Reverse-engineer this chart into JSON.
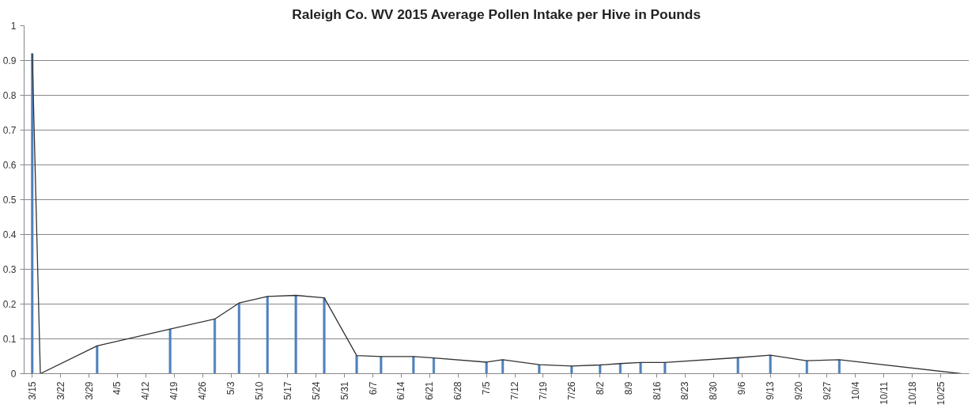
{
  "chart_data": {
    "type": "bar",
    "title": "Raleigh Co. WV 2015 Average Pollen Intake per Hive in Pounds",
    "xlim": [
      "2015-03-13",
      "2015-11-01"
    ],
    "xticks": [
      {
        "value": "2015-03-15",
        "label": "3/15"
      },
      {
        "value": "2015-03-22",
        "label": "3/22"
      },
      {
        "value": "2015-03-29",
        "label": "3/29"
      },
      {
        "value": "2015-04-05",
        "label": "4/5"
      },
      {
        "value": "2015-04-12",
        "label": "4/12"
      },
      {
        "value": "2015-04-19",
        "label": "4/19"
      },
      {
        "value": "2015-04-26",
        "label": "4/26"
      },
      {
        "value": "2015-05-03",
        "label": "5/3"
      },
      {
        "value": "2015-05-10",
        "label": "5/10"
      },
      {
        "value": "2015-05-17",
        "label": "5/17"
      },
      {
        "value": "2015-05-24",
        "label": "5/24"
      },
      {
        "value": "2015-05-31",
        "label": "5/31"
      },
      {
        "value": "2015-06-07",
        "label": "6/7"
      },
      {
        "value": "2015-06-14",
        "label": "6/14"
      },
      {
        "value": "2015-06-21",
        "label": "6/21"
      },
      {
        "value": "2015-06-28",
        "label": "6/28"
      },
      {
        "value": "2015-07-05",
        "label": "7/5"
      },
      {
        "value": "2015-07-12",
        "label": "7/12"
      },
      {
        "value": "2015-07-19",
        "label": "7/19"
      },
      {
        "value": "2015-07-26",
        "label": "7/26"
      },
      {
        "value": "2015-08-02",
        "label": "8/2"
      },
      {
        "value": "2015-08-09",
        "label": "8/9"
      },
      {
        "value": "2015-08-16",
        "label": "8/16"
      },
      {
        "value": "2015-08-23",
        "label": "8/23"
      },
      {
        "value": "2015-08-30",
        "label": "8/30"
      },
      {
        "value": "2015-09-06",
        "label": "9/6"
      },
      {
        "value": "2015-09-13",
        "label": "9/13"
      },
      {
        "value": "2015-09-20",
        "label": "9/20"
      },
      {
        "value": "2015-09-27",
        "label": "9/27"
      },
      {
        "value": "2015-10-04",
        "label": "10/4"
      },
      {
        "value": "2015-10-11",
        "label": "10/11"
      },
      {
        "value": "2015-10-18",
        "label": "10/18"
      },
      {
        "value": "2015-10-25",
        "label": "10/25"
      }
    ],
    "ylim": [
      0,
      1
    ],
    "yticks": [
      0,
      0.1,
      0.2,
      0.3,
      0.4,
      0.5,
      0.6,
      0.7,
      0.8,
      0.9,
      1
    ],
    "grid": "y",
    "series": [
      {
        "color": "#4f81bd",
        "x": [
          "2015-03-15",
          "2015-03-31",
          "2015-04-18",
          "2015-04-29",
          "2015-05-05",
          "2015-05-12",
          "2015-05-19",
          "2015-05-26",
          "2015-06-03",
          "2015-06-09",
          "2015-06-17",
          "2015-06-22",
          "2015-07-05",
          "2015-07-09",
          "2015-07-18",
          "2015-07-26",
          "2015-08-02",
          "2015-08-07",
          "2015-08-12",
          "2015-08-18",
          "2015-09-05",
          "2015-09-13",
          "2015-09-22",
          "2015-09-30"
        ],
        "values": [
          0.92,
          0.08,
          0.128,
          0.157,
          0.203,
          0.222,
          0.225,
          0.218,
          0.052,
          0.049,
          0.049,
          0.045,
          0.033,
          0.04,
          0.026,
          0.022,
          0.025,
          0.029,
          0.032,
          0.032,
          0.046,
          0.053,
          0.037,
          0.04
        ]
      },
      {
        "type": "line",
        "color": "#333333",
        "x": [
          "2015-03-15",
          "2015-03-17",
          "2015-03-31",
          "2015-04-18",
          "2015-04-29",
          "2015-05-05",
          "2015-05-12",
          "2015-05-19",
          "2015-05-26",
          "2015-06-03",
          "2015-06-09",
          "2015-06-17",
          "2015-06-22",
          "2015-07-05",
          "2015-07-09",
          "2015-07-18",
          "2015-07-26",
          "2015-08-02",
          "2015-08-07",
          "2015-08-12",
          "2015-08-18",
          "2015-09-05",
          "2015-09-13",
          "2015-09-22",
          "2015-09-30",
          "2015-10-30"
        ],
        "values": [
          0.92,
          0,
          0.08,
          0.128,
          0.157,
          0.203,
          0.222,
          0.225,
          0.218,
          0.052,
          0.049,
          0.049,
          0.045,
          0.033,
          0.04,
          0.026,
          0.022,
          0.025,
          0.029,
          0.032,
          0.032,
          0.046,
          0.053,
          0.037,
          0.04,
          0
        ]
      }
    ]
  }
}
